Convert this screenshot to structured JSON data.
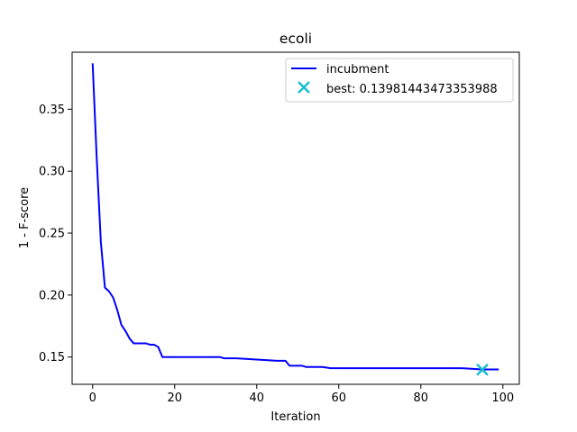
{
  "chart_data": {
    "type": "line",
    "title": "ecoli",
    "xlabel": "Iteration",
    "ylabel": "1 - F-score",
    "xlim": [
      -5,
      104
    ],
    "ylim": [
      0.128,
      0.396
    ],
    "xticks": [
      0,
      20,
      40,
      60,
      80,
      100
    ],
    "yticks": [
      0.15,
      0.2,
      0.25,
      0.3,
      0.35
    ],
    "ytick_labels": [
      "0.15",
      "0.20",
      "0.25",
      "0.30",
      "0.35"
    ],
    "grid": false,
    "legend_position": "top-right",
    "series": [
      {
        "name": "incubment",
        "color": "#0000ff",
        "x": [
          0,
          1,
          2,
          3,
          4,
          5,
          6,
          7,
          8,
          9,
          10,
          11,
          12,
          13,
          14,
          15,
          16,
          17,
          20,
          25,
          26,
          30,
          31,
          32,
          35,
          40,
          45,
          47,
          48,
          50,
          51,
          52,
          56,
          58,
          60,
          65,
          70,
          75,
          80,
          85,
          90,
          95,
          99
        ],
        "y": [
          0.387,
          0.31,
          0.243,
          0.206,
          0.203,
          0.198,
          0.188,
          0.176,
          0.171,
          0.165,
          0.161,
          0.161,
          0.161,
          0.161,
          0.16,
          0.16,
          0.158,
          0.15,
          0.15,
          0.15,
          0.15,
          0.15,
          0.15,
          0.149,
          0.149,
          0.148,
          0.147,
          0.147,
          0.143,
          0.143,
          0.143,
          0.142,
          0.142,
          0.141,
          0.141,
          0.141,
          0.141,
          0.141,
          0.141,
          0.141,
          0.141,
          0.14,
          0.14
        ]
      }
    ],
    "best_marker": {
      "label": "best: 0.13981443473353988",
      "x": 95,
      "y": 0.13981443473353988,
      "color": "#17becf"
    }
  }
}
